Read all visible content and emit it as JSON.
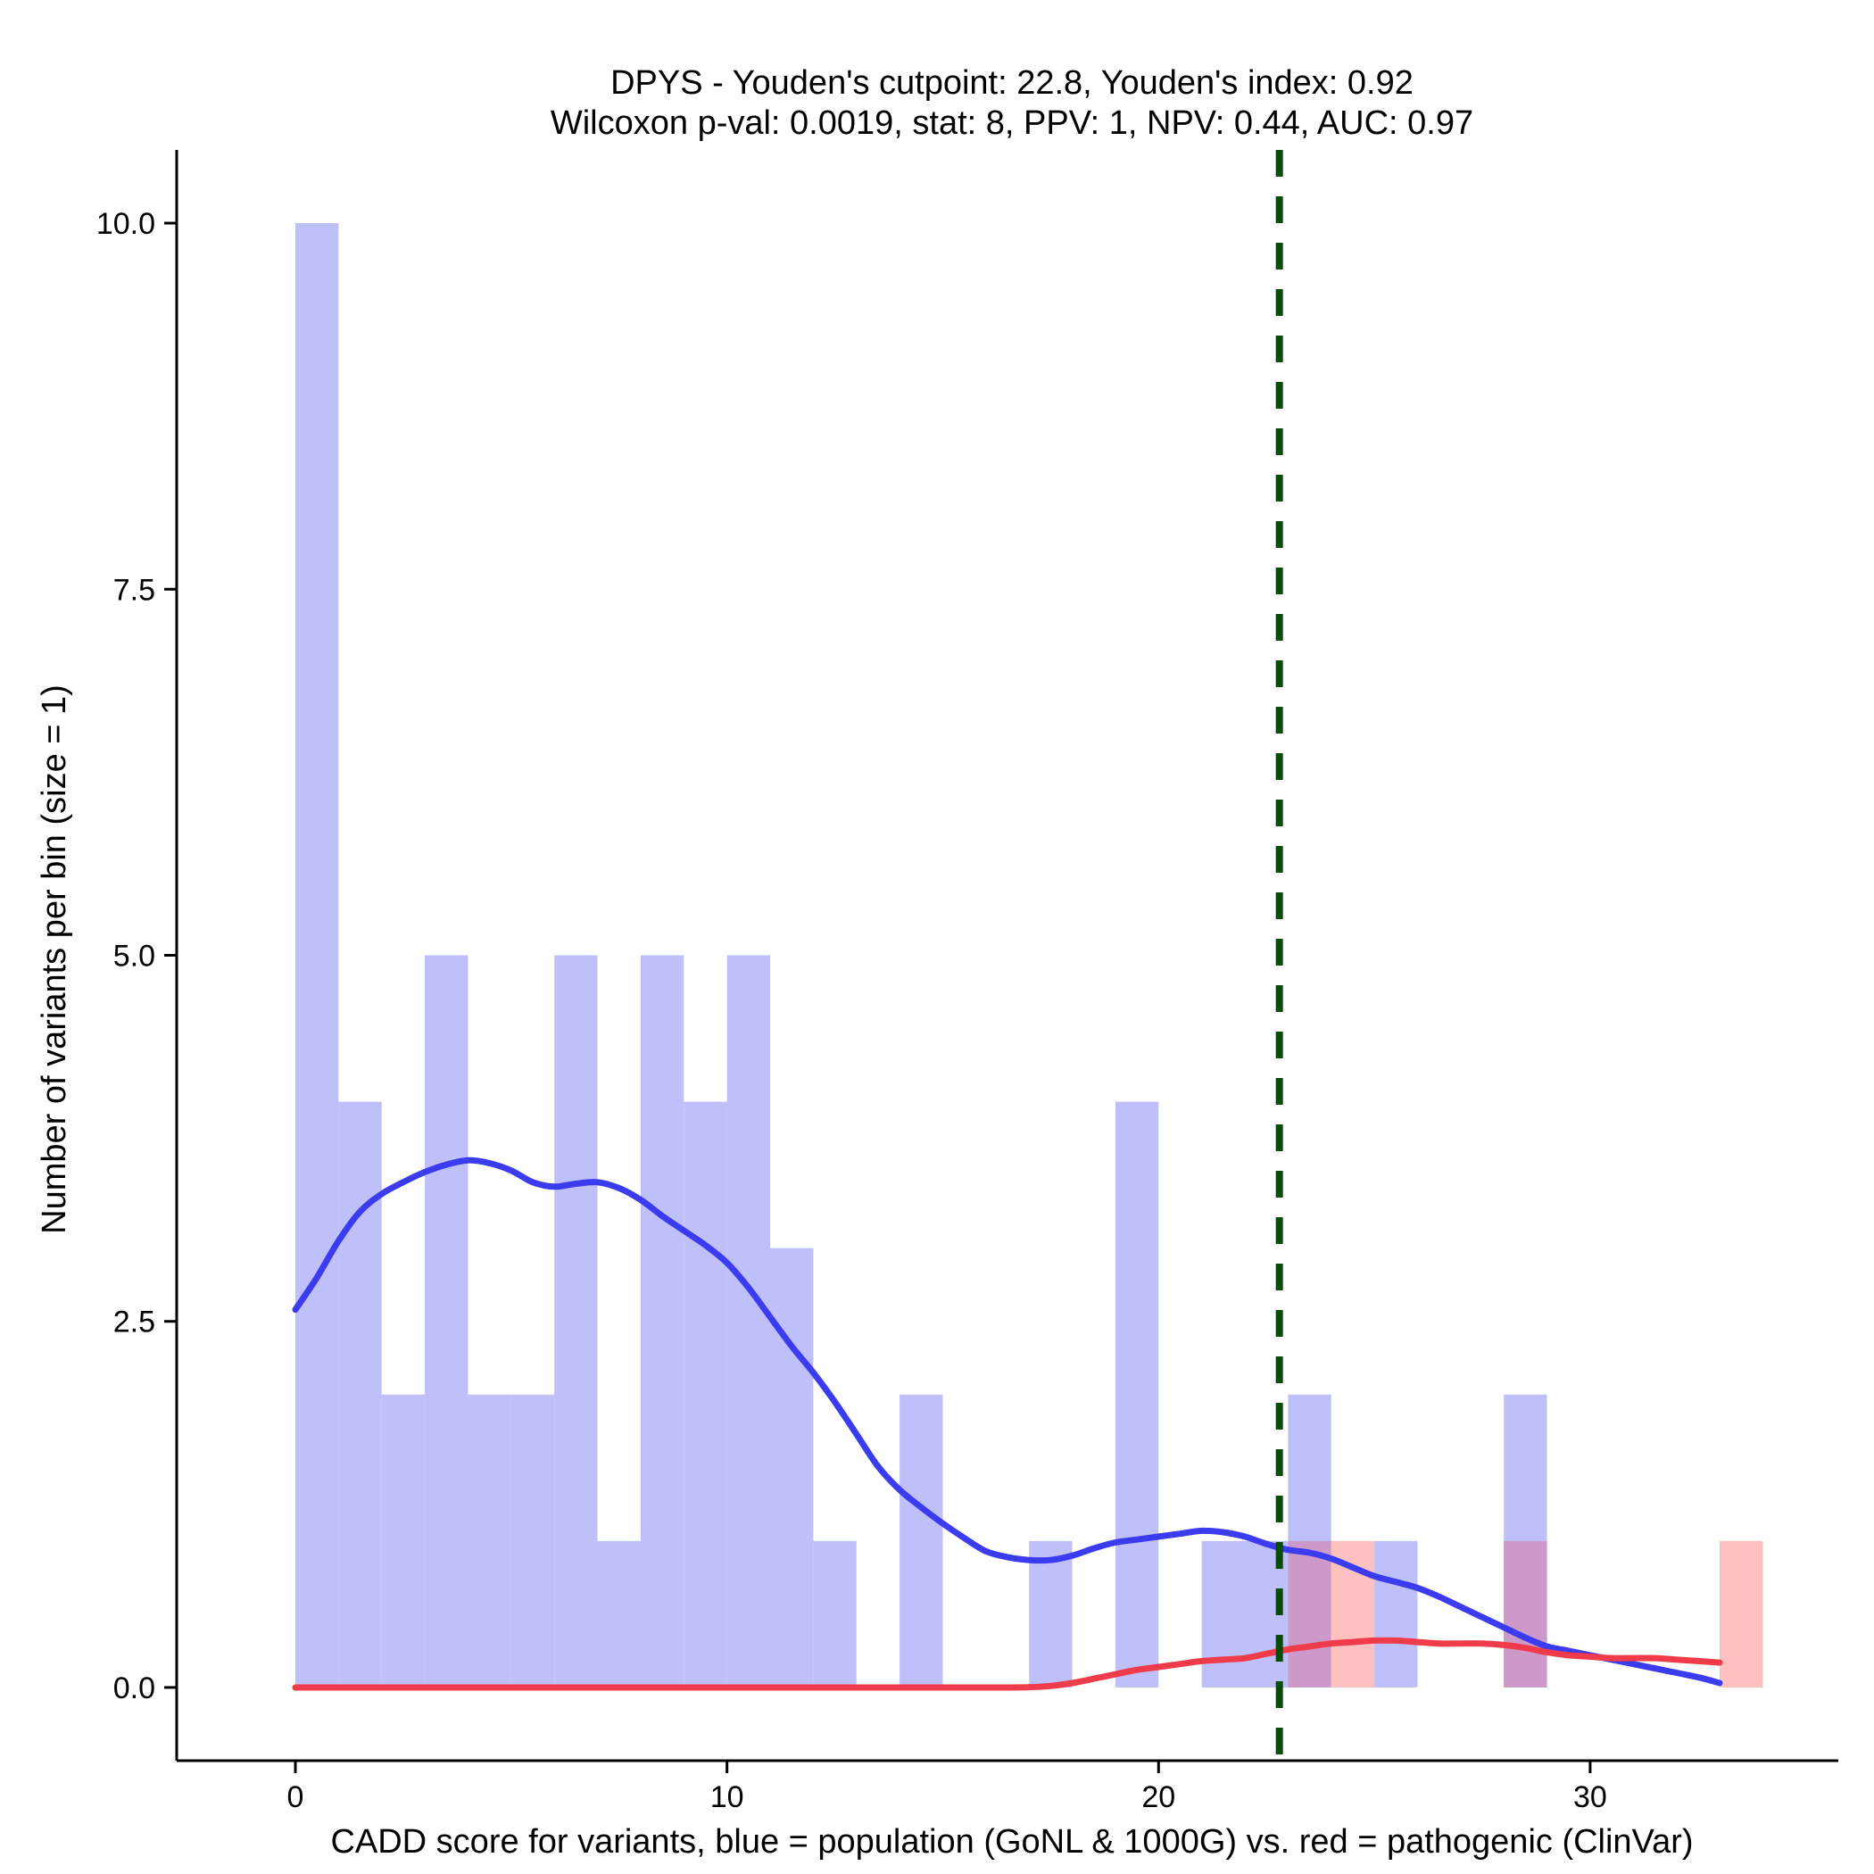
{
  "chart_data": {
    "type": "histogram",
    "title_line1": "DPYS - Youden's cutpoint: 22.8, Youden's index: 0.92",
    "title_line2": "Wilcoxon p-val: 0.0019, stat: 8, PPV: 1, NPV: 0.44, AUC: 0.97",
    "xlabel": "CADD score for variants, blue = population (GoNL & 1000G) vs. red = pathogenic (ClinVar)",
    "ylabel": "Number of variants per bin (size = 1)",
    "xlim": [
      -2.75,
      35.75
    ],
    "ylim": [
      -0.5,
      10.5
    ],
    "x_ticks": [
      0,
      10,
      20,
      30
    ],
    "x_tick_labels": [
      "0",
      "10",
      "20",
      "30"
    ],
    "y_ticks": [
      0,
      2.5,
      5,
      7.5,
      10
    ],
    "y_tick_labels": [
      "0.0",
      "2.5",
      "5.0",
      "7.5",
      "10.0"
    ],
    "bin_width": 1,
    "cutpoint": 22.8,
    "colors": {
      "population_bar": "#bfbffa",
      "pathogenic_bar": "#ffc0c0",
      "overlap_bar": "#cc99c9",
      "population_line": "#3b3bf0",
      "pathogenic_line": "#f03c4a",
      "cutpoint_line": "#0a4a0a"
    },
    "series": [
      {
        "name": "population (GoNL & 1000G)",
        "bins": [
          {
            "x": 0,
            "count": 10
          },
          {
            "x": 1,
            "count": 4
          },
          {
            "x": 2,
            "count": 2
          },
          {
            "x": 3,
            "count": 5
          },
          {
            "x": 4,
            "count": 2
          },
          {
            "x": 5,
            "count": 2
          },
          {
            "x": 6,
            "count": 5
          },
          {
            "x": 7,
            "count": 1
          },
          {
            "x": 8,
            "count": 5
          },
          {
            "x": 9,
            "count": 4
          },
          {
            "x": 10,
            "count": 5
          },
          {
            "x": 11,
            "count": 3
          },
          {
            "x": 12,
            "count": 1
          },
          {
            "x": 14,
            "count": 2
          },
          {
            "x": 17,
            "count": 1
          },
          {
            "x": 19,
            "count": 4
          },
          {
            "x": 21,
            "count": 1
          },
          {
            "x": 22,
            "count": 1
          },
          {
            "x": 23,
            "count": 2
          },
          {
            "x": 25,
            "count": 1
          },
          {
            "x": 28,
            "count": 2
          }
        ],
        "density_curve": [
          [
            0,
            2.58
          ],
          [
            0.5,
            2.8
          ],
          [
            1,
            3.05
          ],
          [
            1.5,
            3.25
          ],
          [
            2,
            3.37
          ],
          [
            2.5,
            3.45
          ],
          [
            3,
            3.52
          ],
          [
            3.5,
            3.57
          ],
          [
            4,
            3.6
          ],
          [
            4.5,
            3.58
          ],
          [
            5,
            3.53
          ],
          [
            5.5,
            3.45
          ],
          [
            6,
            3.42
          ],
          [
            6.5,
            3.44
          ],
          [
            7,
            3.45
          ],
          [
            7.5,
            3.41
          ],
          [
            8,
            3.33
          ],
          [
            8.5,
            3.22
          ],
          [
            9,
            3.12
          ],
          [
            9.5,
            3.02
          ],
          [
            10,
            2.9
          ],
          [
            10.5,
            2.73
          ],
          [
            11,
            2.53
          ],
          [
            11.5,
            2.33
          ],
          [
            12,
            2.15
          ],
          [
            12.5,
            1.95
          ],
          [
            13,
            1.73
          ],
          [
            13.5,
            1.51
          ],
          [
            14,
            1.35
          ],
          [
            14.5,
            1.23
          ],
          [
            15,
            1.12
          ],
          [
            15.5,
            1.02
          ],
          [
            16,
            0.93
          ],
          [
            16.5,
            0.89
          ],
          [
            17,
            0.87
          ],
          [
            17.5,
            0.87
          ],
          [
            18,
            0.9
          ],
          [
            18.5,
            0.95
          ],
          [
            19,
            0.99
          ],
          [
            19.5,
            1.01
          ],
          [
            20,
            1.03
          ],
          [
            20.5,
            1.05
          ],
          [
            21,
            1.07
          ],
          [
            21.5,
            1.06
          ],
          [
            22,
            1.03
          ],
          [
            22.5,
            0.98
          ],
          [
            23,
            0.94
          ],
          [
            23.5,
            0.92
          ],
          [
            24,
            0.88
          ],
          [
            24.5,
            0.82
          ],
          [
            25,
            0.76
          ],
          [
            25.5,
            0.72
          ],
          [
            26,
            0.68
          ],
          [
            26.5,
            0.62
          ],
          [
            27,
            0.55
          ],
          [
            27.5,
            0.48
          ],
          [
            28,
            0.41
          ],
          [
            28.5,
            0.34
          ],
          [
            29,
            0.28
          ],
          [
            29.5,
            0.25
          ],
          [
            30,
            0.22
          ],
          [
            30.5,
            0.19
          ],
          [
            31,
            0.16
          ],
          [
            31.5,
            0.13
          ],
          [
            32,
            0.1
          ],
          [
            32.5,
            0.07
          ],
          [
            33,
            0.03
          ]
        ]
      },
      {
        "name": "pathogenic (ClinVar)",
        "bins": [
          {
            "x": 23,
            "count": 1
          },
          {
            "x": 24,
            "count": 1
          },
          {
            "x": 28,
            "count": 1
          },
          {
            "x": 33,
            "count": 1
          }
        ],
        "density_curve": [
          [
            0,
            0
          ],
          [
            2,
            0
          ],
          [
            4,
            0
          ],
          [
            6,
            0
          ],
          [
            8,
            0
          ],
          [
            10,
            0
          ],
          [
            12,
            0
          ],
          [
            14,
            0
          ],
          [
            16,
            0
          ],
          [
            16.5,
            0
          ],
          [
            17,
            0.002
          ],
          [
            17.5,
            0.01
          ],
          [
            18,
            0.03
          ],
          [
            18.5,
            0.06
          ],
          [
            19,
            0.09
          ],
          [
            19.5,
            0.12
          ],
          [
            20,
            0.14
          ],
          [
            20.5,
            0.16
          ],
          [
            21,
            0.18
          ],
          [
            21.5,
            0.19
          ],
          [
            22,
            0.2
          ],
          [
            22.5,
            0.23
          ],
          [
            23,
            0.26
          ],
          [
            23.5,
            0.28
          ],
          [
            24,
            0.3
          ],
          [
            24.5,
            0.31
          ],
          [
            25,
            0.32
          ],
          [
            25.5,
            0.32
          ],
          [
            26,
            0.31
          ],
          [
            26.5,
            0.3
          ],
          [
            27,
            0.3
          ],
          [
            27.5,
            0.3
          ],
          [
            28,
            0.29
          ],
          [
            28.5,
            0.27
          ],
          [
            29,
            0.24
          ],
          [
            29.5,
            0.22
          ],
          [
            30,
            0.21
          ],
          [
            30.5,
            0.2
          ],
          [
            31,
            0.2
          ],
          [
            31.5,
            0.2
          ],
          [
            32,
            0.19
          ],
          [
            32.5,
            0.18
          ],
          [
            33,
            0.17
          ]
        ]
      }
    ]
  }
}
